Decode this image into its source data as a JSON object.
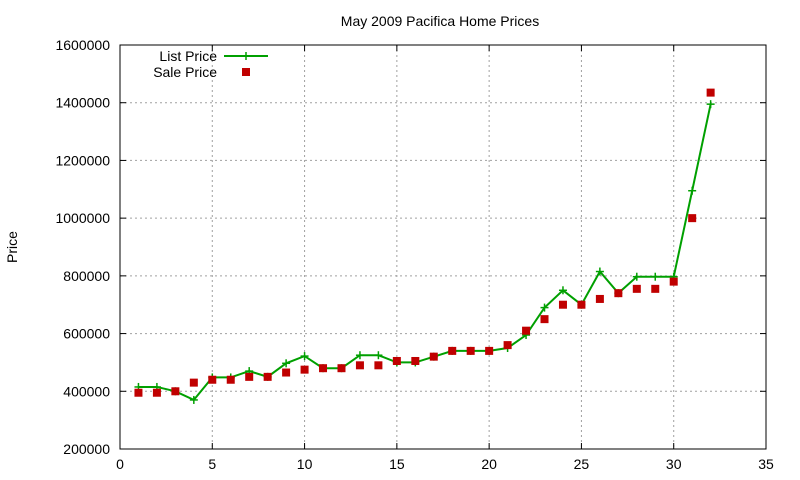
{
  "chart_data": {
    "type": "line",
    "title": "May 2009 Pacifica Home Prices",
    "xlabel": "",
    "ylabel": "Price",
    "xlim": [
      0,
      35
    ],
    "ylim": [
      200000,
      1600000
    ],
    "x_ticks": [
      0,
      5,
      10,
      15,
      20,
      25,
      30,
      35
    ],
    "y_ticks": [
      200000,
      400000,
      600000,
      800000,
      1000000,
      1200000,
      1400000,
      1600000
    ],
    "x_tick_labels": [
      "0",
      "5",
      "10",
      "15",
      "20",
      "25",
      "30",
      "35"
    ],
    "y_tick_labels": [
      "200000",
      "400000",
      "600000",
      "800000",
      "1000000",
      "1200000",
      "1400000",
      "1600000"
    ],
    "grid": true,
    "legend_position": "top-left",
    "series": [
      {
        "name": "List Price",
        "style": "linespoints",
        "color": "#00a000",
        "x": [
          1,
          2,
          3,
          4,
          5,
          6,
          7,
          8,
          9,
          10,
          11,
          12,
          13,
          14,
          15,
          16,
          17,
          18,
          19,
          20,
          21,
          22,
          23,
          24,
          25,
          26,
          27,
          28,
          29,
          30,
          31,
          32
        ],
        "y": [
          415000,
          415000,
          400000,
          370000,
          448000,
          448000,
          470000,
          450000,
          497000,
          522000,
          480000,
          480000,
          525000,
          525000,
          500000,
          500000,
          520000,
          540000,
          540000,
          540000,
          550000,
          595000,
          690000,
          750000,
          700000,
          815000,
          740000,
          797000,
          797000,
          797000,
          1095000,
          1395000
        ]
      },
      {
        "name": "Sale Price",
        "style": "points",
        "color": "#c00000",
        "x": [
          1,
          2,
          3,
          4,
          5,
          6,
          7,
          8,
          9,
          10,
          11,
          12,
          13,
          14,
          15,
          16,
          17,
          18,
          19,
          20,
          21,
          22,
          23,
          24,
          25,
          26,
          27,
          28,
          29,
          30,
          31,
          32
        ],
        "y": [
          395000,
          395000,
          400000,
          430000,
          440000,
          440000,
          450000,
          450000,
          465000,
          475000,
          480000,
          480000,
          490000,
          490000,
          505000,
          505000,
          520000,
          540000,
          540000,
          540000,
          560000,
          610000,
          650000,
          700000,
          700000,
          720000,
          740000,
          755000,
          755000,
          780000,
          1000000,
          1435000
        ]
      }
    ]
  }
}
